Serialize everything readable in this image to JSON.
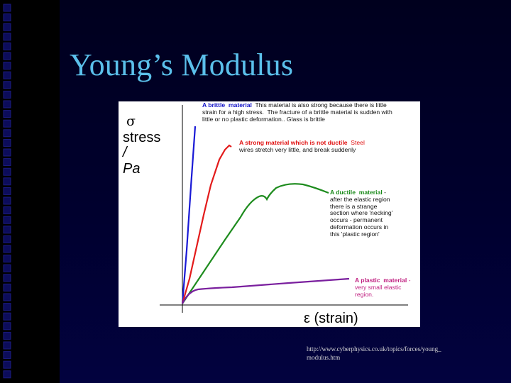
{
  "slide": {
    "title": "Young’s Modulus",
    "source_url": "http://www.cyberphysics.co.uk/topics/forces/young_\nmodulus.htm"
  },
  "figure": {
    "y_axis": {
      "symbol": "σ",
      "label_line1": "stress",
      "label_line2": "/ Pa"
    },
    "x_axis": {
      "label": "ε  (strain)"
    },
    "annotations": {
      "brittle": {
        "heading": "A brittle  material",
        "body_first": "  This material is also strong because there is little",
        "body_rest": "strain for a high stress.  The fracture of a brittle material is sudden with\nlittle or no plastic deformation.. Glass is brittle"
      },
      "strong": {
        "heading": "A strong material which is not ductile",
        "body_first": "  Steel",
        "body_rest": "wires stretch very little, and break suddenly"
      },
      "ductile": {
        "heading": "A ductile  material",
        "body_first": " -",
        "body_rest": "after the elastic region\nthere is a strange\nsection where 'necking'\noccurs - permanent\ndeformation occurs in\nthis 'plastic region'"
      },
      "plastic": {
        "heading": "A plastic  material",
        "body_first": " -",
        "body_rest": "very small elastic\nregion."
      }
    },
    "curve_colors": {
      "brittle": "#1a1ad6",
      "strong": "#e31b1b",
      "ductile": "#1e8c1e",
      "plastic": "#7a1f9e"
    }
  }
}
